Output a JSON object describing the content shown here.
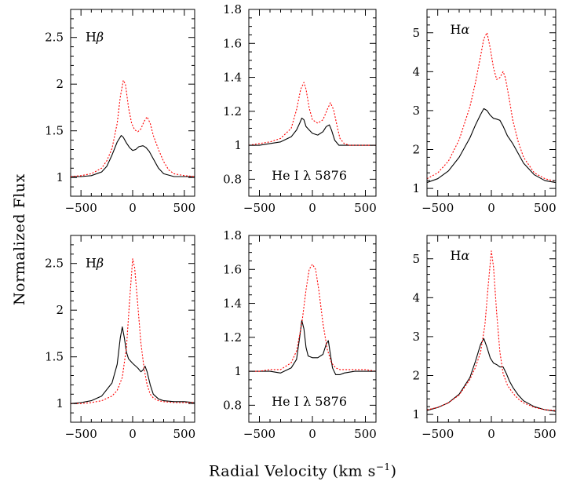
{
  "figure": {
    "xlabel_text": "Radial Velocity (km s",
    "xlabel_sup": "−1",
    "xlabel_close": ")",
    "ylabel": "Normalized Flux"
  },
  "chart_data": [
    {
      "type": "line",
      "panel": "top-left",
      "label_base": "H",
      "label_greek": "β",
      "xlim": [
        -600,
        600
      ],
      "ylim": [
        0.8,
        2.8
      ],
      "xticks": [
        -500,
        0,
        500
      ],
      "yticks": [
        1,
        1.5,
        2,
        2.5
      ],
      "series": [
        {
          "color": "#000000",
          "dash": "solid",
          "x": [
            -600,
            -500,
            -400,
            -300,
            -250,
            -200,
            -150,
            -110,
            -90,
            -60,
            -30,
            0,
            30,
            60,
            100,
            130,
            160,
            200,
            250,
            300,
            400,
            500,
            600
          ],
          "y": [
            1.01,
            1.01,
            1.02,
            1.06,
            1.12,
            1.24,
            1.38,
            1.45,
            1.43,
            1.37,
            1.32,
            1.29,
            1.3,
            1.33,
            1.34,
            1.32,
            1.28,
            1.2,
            1.1,
            1.04,
            1.01,
            1.01,
            1.01
          ]
        },
        {
          "color": "#ff0000",
          "dash": "dotted",
          "x": [
            -600,
            -500,
            -400,
            -300,
            -250,
            -200,
            -150,
            -120,
            -90,
            -70,
            -40,
            -10,
            20,
            50,
            80,
            110,
            140,
            170,
            200,
            250,
            300,
            350,
            400,
            500,
            600
          ],
          "y": [
            1.01,
            1.02,
            1.04,
            1.1,
            1.18,
            1.31,
            1.58,
            1.86,
            2.04,
            2.0,
            1.75,
            1.58,
            1.51,
            1.49,
            1.52,
            1.6,
            1.65,
            1.58,
            1.45,
            1.3,
            1.17,
            1.08,
            1.04,
            1.02,
            1.01
          ]
        }
      ]
    },
    {
      "type": "line",
      "panel": "top-middle",
      "label_text": "He I λ 5876",
      "xlim": [
        -600,
        600
      ],
      "ylim": [
        0.7,
        1.8
      ],
      "xticks": [
        -500,
        0,
        500
      ],
      "yticks": [
        0.8,
        1,
        1.2,
        1.4,
        1.6,
        1.8
      ],
      "series": [
        {
          "color": "#000000",
          "dash": "solid",
          "x": [
            -600,
            -500,
            -400,
            -300,
            -200,
            -150,
            -120,
            -100,
            -80,
            -60,
            -30,
            0,
            50,
            100,
            130,
            160,
            180,
            210,
            250,
            300,
            400,
            500,
            600
          ],
          "y": [
            1.0,
            1.0,
            1.01,
            1.02,
            1.05,
            1.09,
            1.13,
            1.16,
            1.15,
            1.11,
            1.09,
            1.07,
            1.06,
            1.08,
            1.11,
            1.12,
            1.09,
            1.03,
            1.0,
            1.0,
            1.0,
            1.0,
            1.0
          ]
        },
        {
          "color": "#ff0000",
          "dash": "dotted",
          "x": [
            -600,
            -500,
            -400,
            -300,
            -200,
            -150,
            -110,
            -80,
            -60,
            -30,
            0,
            50,
            100,
            140,
            170,
            200,
            230,
            260,
            300,
            350,
            400,
            500,
            600
          ],
          "y": [
            1.0,
            1.01,
            1.02,
            1.04,
            1.1,
            1.21,
            1.33,
            1.37,
            1.33,
            1.22,
            1.15,
            1.13,
            1.15,
            1.21,
            1.25,
            1.21,
            1.12,
            1.04,
            1.01,
            1.0,
            1.0,
            1.0,
            1.0
          ]
        }
      ]
    },
    {
      "type": "line",
      "panel": "top-right",
      "label_base": "H",
      "label_greek": "α",
      "xlim": [
        -600,
        600
      ],
      "ylim": [
        0.8,
        5.6
      ],
      "xticks": [
        -500,
        0,
        500
      ],
      "yticks": [
        1,
        2,
        3,
        4,
        5
      ],
      "series": [
        {
          "color": "#000000",
          "dash": "solid",
          "x": [
            -600,
            -500,
            -400,
            -300,
            -200,
            -150,
            -100,
            -70,
            -40,
            -10,
            20,
            50,
            80,
            110,
            150,
            200,
            250,
            300,
            400,
            500,
            600
          ],
          "y": [
            1.15,
            1.25,
            1.45,
            1.8,
            2.3,
            2.62,
            2.9,
            3.05,
            3.0,
            2.88,
            2.8,
            2.78,
            2.75,
            2.6,
            2.35,
            2.15,
            1.9,
            1.65,
            1.35,
            1.2,
            1.15
          ]
        },
        {
          "color": "#ff0000",
          "dash": "dotted",
          "x": [
            -600,
            -500,
            -400,
            -300,
            -200,
            -150,
            -100,
            -70,
            -40,
            -10,
            20,
            50,
            80,
            110,
            130,
            160,
            200,
            250,
            300,
            400,
            500,
            600
          ],
          "y": [
            1.25,
            1.4,
            1.7,
            2.25,
            3.1,
            3.7,
            4.4,
            4.85,
            5.0,
            4.6,
            4.1,
            3.8,
            3.85,
            4.0,
            3.85,
            3.4,
            2.75,
            2.2,
            1.8,
            1.4,
            1.25,
            1.18
          ]
        }
      ]
    },
    {
      "type": "line",
      "panel": "bottom-left",
      "label_base": "H",
      "label_greek": "β",
      "xlim": [
        -600,
        600
      ],
      "ylim": [
        0.8,
        2.8
      ],
      "xticks": [
        -500,
        0,
        500
      ],
      "yticks": [
        1,
        1.5,
        2,
        2.5
      ],
      "series": [
        {
          "color": "#000000",
          "dash": "solid",
          "x": [
            -600,
            -500,
            -400,
            -300,
            -200,
            -150,
            -120,
            -100,
            -80,
            -60,
            -40,
            0,
            50,
            80,
            100,
            120,
            140,
            170,
            200,
            250,
            300,
            400,
            500,
            600
          ],
          "y": [
            1.0,
            1.01,
            1.03,
            1.08,
            1.22,
            1.42,
            1.7,
            1.82,
            1.7,
            1.55,
            1.48,
            1.43,
            1.38,
            1.34,
            1.36,
            1.4,
            1.34,
            1.2,
            1.1,
            1.05,
            1.03,
            1.02,
            1.02,
            1.01
          ]
        },
        {
          "color": "#ff0000",
          "dash": "dotted",
          "x": [
            -600,
            -500,
            -400,
            -300,
            -200,
            -150,
            -100,
            -60,
            -30,
            0,
            20,
            50,
            80,
            110,
            140,
            170,
            200,
            250,
            300,
            400,
            500,
            600
          ],
          "y": [
            1.0,
            1.0,
            1.01,
            1.03,
            1.08,
            1.14,
            1.28,
            1.6,
            2.1,
            2.55,
            2.45,
            2.05,
            1.65,
            1.38,
            1.2,
            1.1,
            1.06,
            1.03,
            1.02,
            1.01,
            1.01,
            1.01
          ]
        }
      ]
    },
    {
      "type": "line",
      "panel": "bottom-middle",
      "label_text": "He I λ 5876",
      "xlim": [
        -600,
        600
      ],
      "ylim": [
        0.7,
        1.8
      ],
      "xticks": [
        -500,
        0,
        500
      ],
      "yticks": [
        0.8,
        1,
        1.2,
        1.4,
        1.6,
        1.8
      ],
      "series": [
        {
          "color": "#000000",
          "dash": "solid",
          "x": [
            -600,
            -500,
            -400,
            -300,
            -200,
            -150,
            -120,
            -100,
            -80,
            -60,
            -40,
            0,
            50,
            100,
            130,
            150,
            170,
            190,
            220,
            260,
            300,
            400,
            500,
            600
          ],
          "y": [
            1.0,
            1.0,
            1.0,
            0.99,
            1.02,
            1.07,
            1.2,
            1.3,
            1.25,
            1.14,
            1.09,
            1.08,
            1.08,
            1.1,
            1.16,
            1.18,
            1.1,
            1.02,
            0.98,
            0.98,
            0.99,
            1.0,
            1.0,
            1.0
          ]
        },
        {
          "color": "#ff0000",
          "dash": "dotted",
          "x": [
            -600,
            -500,
            -400,
            -300,
            -200,
            -150,
            -100,
            -60,
            -30,
            0,
            30,
            60,
            100,
            140,
            180,
            220,
            260,
            300,
            400,
            500,
            600
          ],
          "y": [
            1.0,
            1.0,
            1.01,
            1.01,
            1.05,
            1.12,
            1.28,
            1.48,
            1.6,
            1.63,
            1.6,
            1.48,
            1.28,
            1.13,
            1.05,
            1.02,
            1.01,
            1.01,
            1.01,
            1.01,
            1.0
          ]
        }
      ]
    },
    {
      "type": "line",
      "panel": "bottom-right",
      "label_base": "H",
      "label_greek": "α",
      "xlim": [
        -600,
        600
      ],
      "ylim": [
        0.8,
        5.6
      ],
      "xticks": [
        -500,
        0,
        500
      ],
      "yticks": [
        1,
        2,
        3,
        4,
        5
      ],
      "series": [
        {
          "color": "#000000",
          "dash": "solid",
          "x": [
            -600,
            -500,
            -400,
            -300,
            -200,
            -150,
            -100,
            -70,
            -40,
            -10,
            20,
            50,
            80,
            110,
            140,
            170,
            200,
            250,
            300,
            400,
            500,
            600
          ],
          "y": [
            1.1,
            1.18,
            1.3,
            1.52,
            1.95,
            2.35,
            2.8,
            2.95,
            2.72,
            2.45,
            2.32,
            2.28,
            2.22,
            2.22,
            2.05,
            1.85,
            1.7,
            1.5,
            1.35,
            1.2,
            1.12,
            1.08
          ]
        },
        {
          "color": "#ff0000",
          "dash": "dotted",
          "x": [
            -600,
            -500,
            -400,
            -300,
            -200,
            -150,
            -100,
            -60,
            -30,
            0,
            20,
            50,
            80,
            110,
            150,
            200,
            250,
            300,
            400,
            500,
            600
          ],
          "y": [
            1.12,
            1.18,
            1.3,
            1.5,
            1.9,
            2.2,
            2.6,
            3.3,
            4.3,
            5.2,
            4.8,
            3.6,
            2.6,
            2.05,
            1.75,
            1.55,
            1.4,
            1.3,
            1.18,
            1.12,
            1.1
          ]
        }
      ]
    }
  ]
}
